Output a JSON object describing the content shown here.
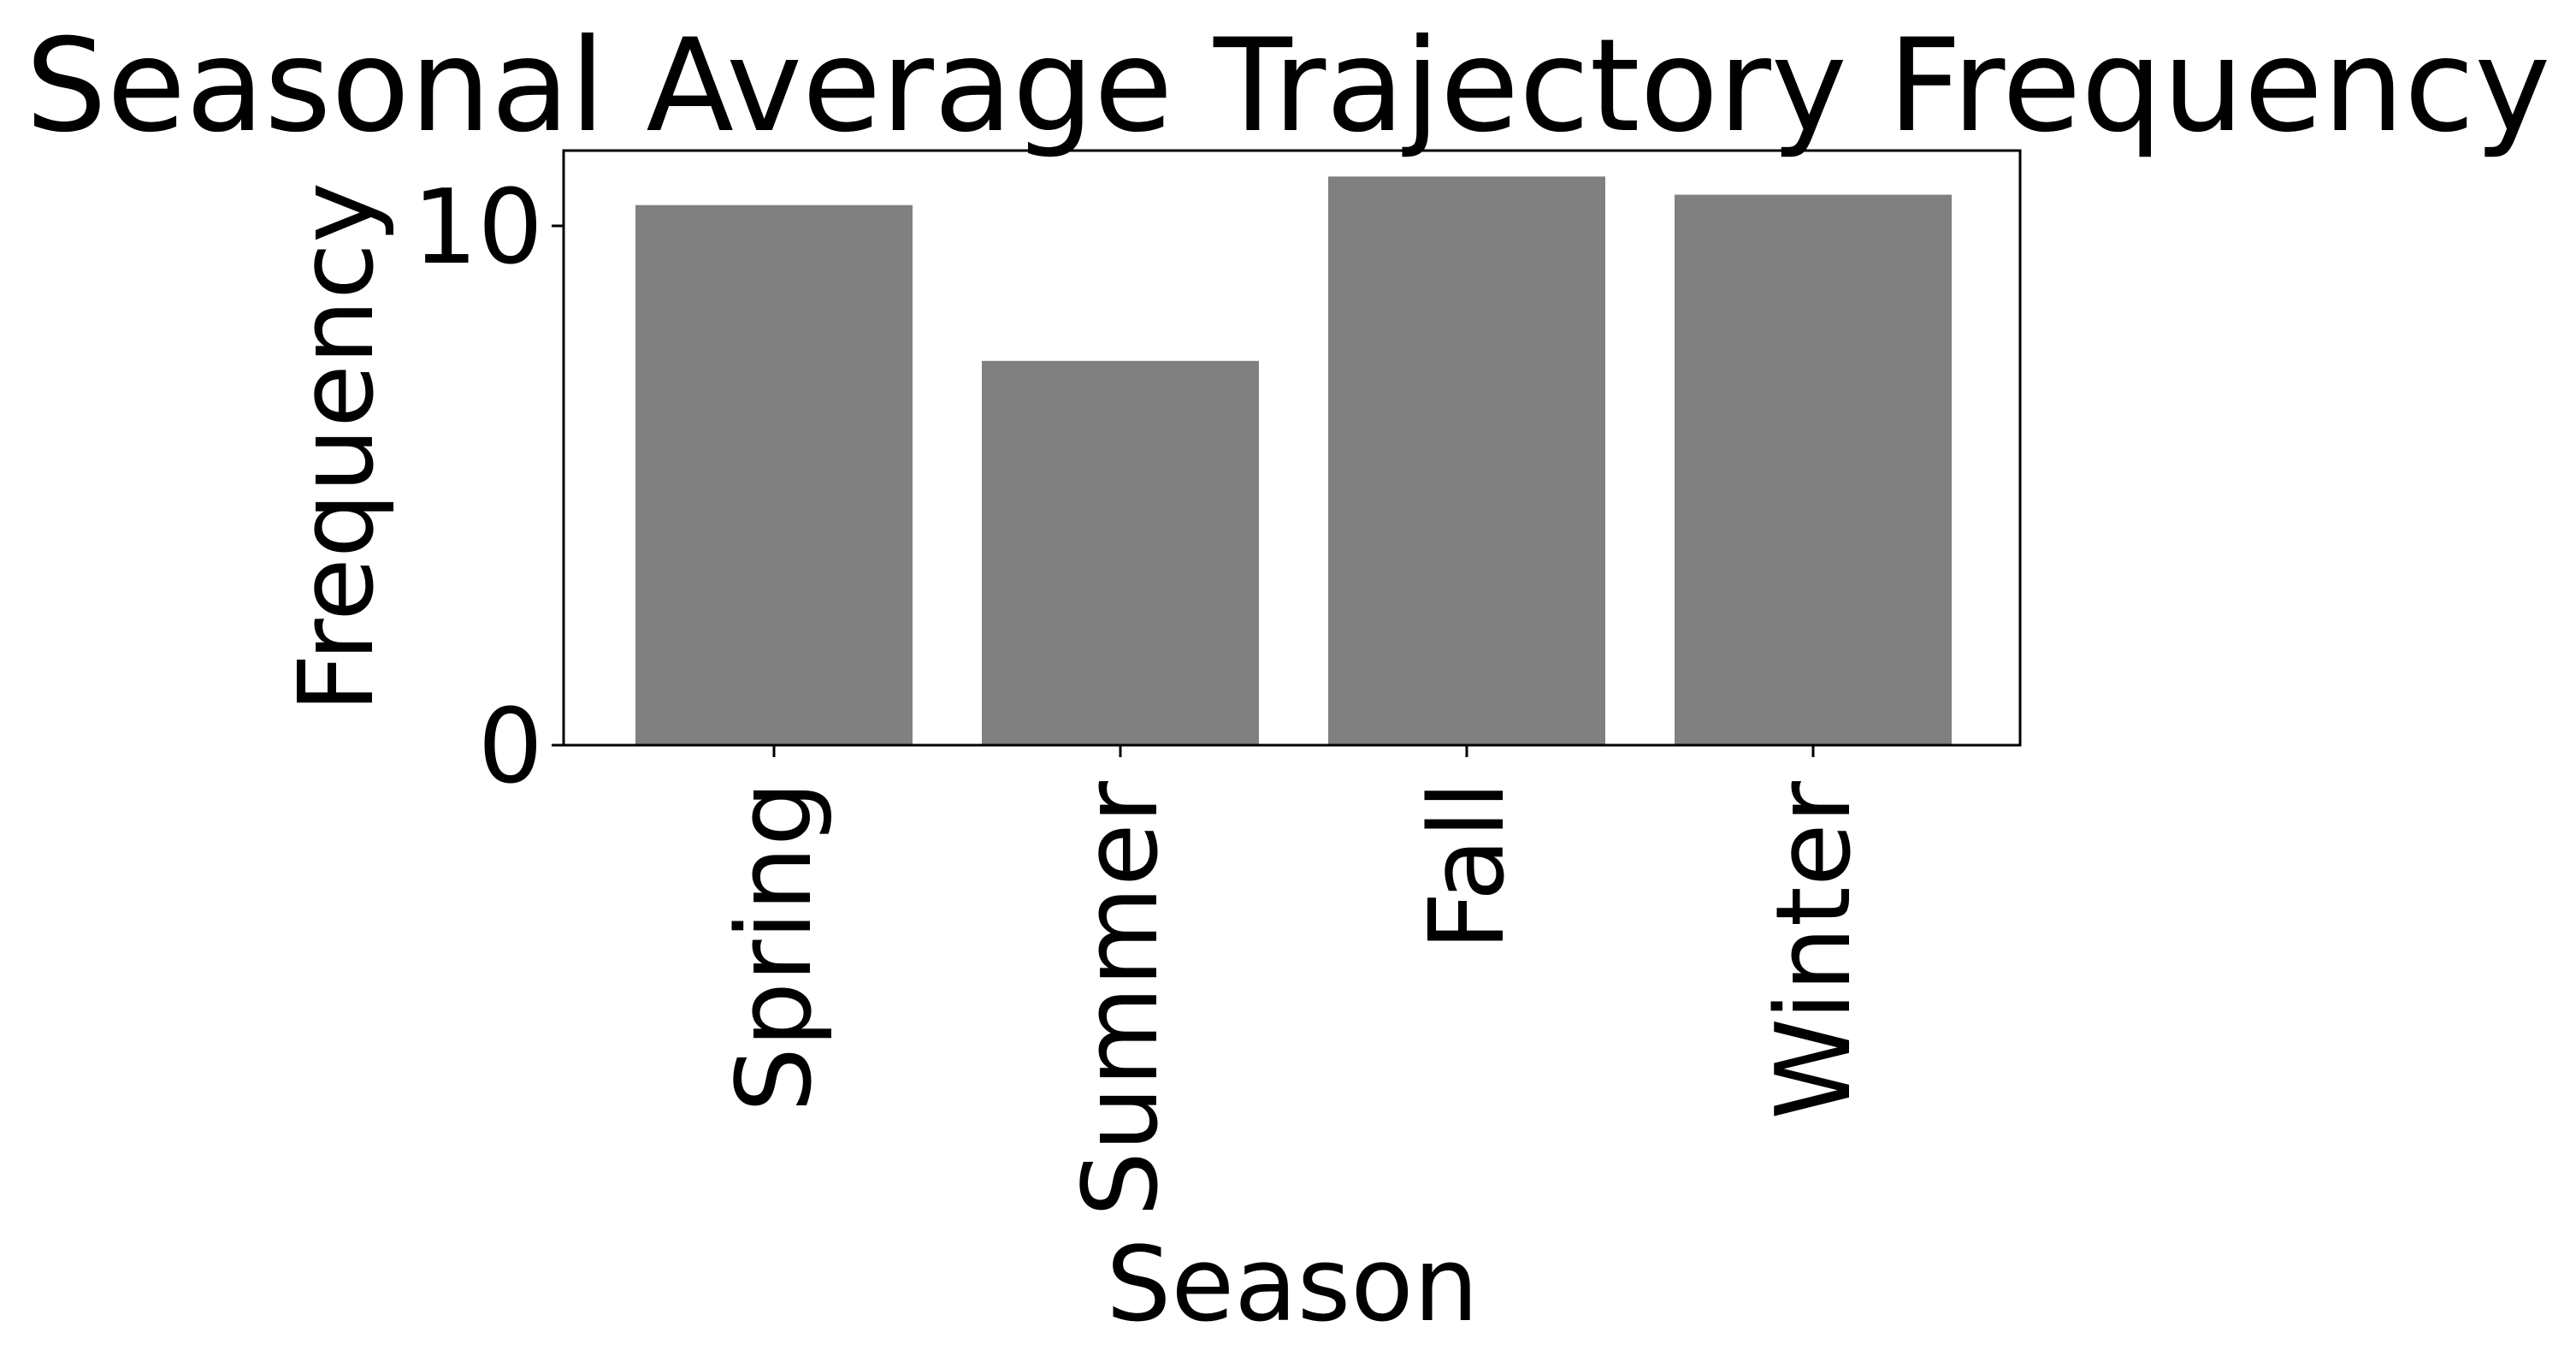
{
  "chart_data": {
    "type": "bar",
    "title": "Seasonal Average Trajectory Frequency",
    "xlabel": "Season",
    "ylabel": "Frequency",
    "categories": [
      "Spring",
      "Summer",
      "Fall",
      "Winter"
    ],
    "values": [
      10.4,
      7.4,
      10.95,
      10.6
    ],
    "ylim": [
      0,
      11.45
    ],
    "yticks": [
      0,
      10
    ],
    "ytick_labels": [
      "0",
      "10"
    ],
    "bar_color": "#808080",
    "grid": false,
    "legend": "none"
  }
}
